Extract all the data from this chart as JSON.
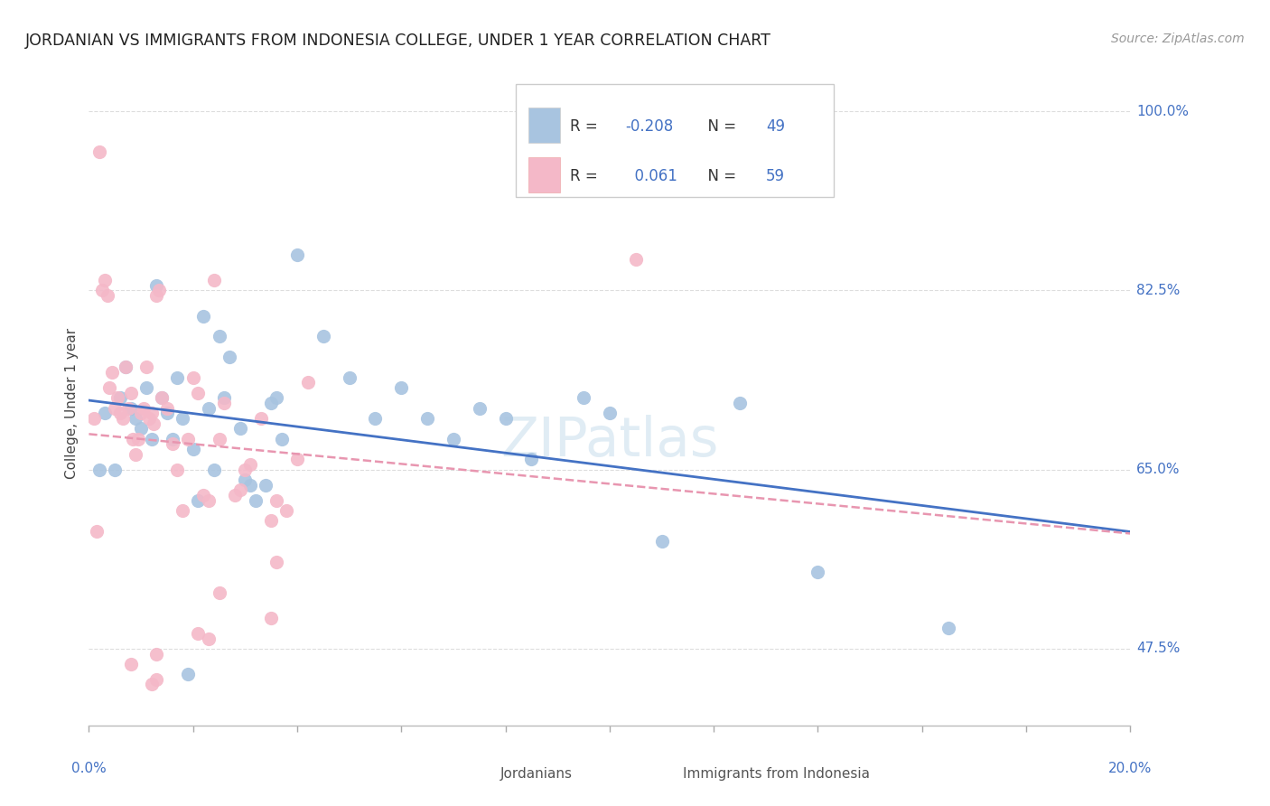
{
  "title": "JORDANIAN VS IMMIGRANTS FROM INDONESIA COLLEGE, UNDER 1 YEAR CORRELATION CHART",
  "source": "Source: ZipAtlas.com",
  "ylabel": "College, Under 1 year",
  "right_yticks": [
    100.0,
    82.5,
    65.0,
    47.5
  ],
  "xmin": 0.0,
  "xmax": 20.0,
  "ymin": 40.0,
  "ymax": 103.0,
  "blue_R": -0.208,
  "blue_N": 49,
  "pink_R": 0.061,
  "pink_N": 59,
  "legend_label_blue": "Jordanians",
  "legend_label_pink": "Immigrants from Indonesia",
  "blue_color": "#a8c4e0",
  "pink_color": "#f4b8c8",
  "blue_line_color": "#4472c4",
  "pink_line_color": "#e896b0",
  "blue_scatter": [
    [
      0.3,
      70.5
    ],
    [
      0.5,
      65.0
    ],
    [
      0.6,
      72.0
    ],
    [
      0.7,
      75.0
    ],
    [
      0.8,
      71.0
    ],
    [
      0.9,
      70.0
    ],
    [
      1.0,
      69.0
    ],
    [
      1.1,
      73.0
    ],
    [
      1.2,
      68.0
    ],
    [
      1.3,
      83.0
    ],
    [
      1.4,
      72.0
    ],
    [
      1.5,
      70.5
    ],
    [
      1.6,
      68.0
    ],
    [
      1.7,
      74.0
    ],
    [
      1.8,
      70.0
    ],
    [
      2.0,
      67.0
    ],
    [
      2.1,
      62.0
    ],
    [
      2.2,
      80.0
    ],
    [
      2.3,
      71.0
    ],
    [
      2.4,
      65.0
    ],
    [
      2.5,
      78.0
    ],
    [
      2.6,
      72.0
    ],
    [
      2.7,
      76.0
    ],
    [
      2.9,
      69.0
    ],
    [
      3.0,
      64.0
    ],
    [
      3.1,
      63.5
    ],
    [
      3.2,
      62.0
    ],
    [
      3.4,
      63.5
    ],
    [
      3.5,
      71.5
    ],
    [
      3.6,
      72.0
    ],
    [
      3.7,
      68.0
    ],
    [
      4.0,
      86.0
    ],
    [
      4.5,
      78.0
    ],
    [
      5.0,
      74.0
    ],
    [
      5.5,
      70.0
    ],
    [
      6.0,
      73.0
    ],
    [
      6.5,
      70.0
    ],
    [
      7.0,
      68.0
    ],
    [
      7.5,
      71.0
    ],
    [
      8.0,
      70.0
    ],
    [
      8.5,
      66.0
    ],
    [
      9.5,
      72.0
    ],
    [
      10.0,
      70.5
    ],
    [
      11.0,
      58.0
    ],
    [
      12.5,
      71.5
    ],
    [
      14.0,
      55.0
    ],
    [
      16.5,
      49.5
    ],
    [
      0.2,
      65.0
    ],
    [
      1.9,
      45.0
    ]
  ],
  "pink_scatter": [
    [
      0.1,
      70.0
    ],
    [
      0.2,
      96.0
    ],
    [
      0.25,
      82.5
    ],
    [
      0.3,
      83.5
    ],
    [
      0.35,
      82.0
    ],
    [
      0.4,
      73.0
    ],
    [
      0.45,
      74.5
    ],
    [
      0.5,
      71.0
    ],
    [
      0.55,
      72.0
    ],
    [
      0.6,
      70.5
    ],
    [
      0.65,
      70.0
    ],
    [
      0.7,
      75.0
    ],
    [
      0.75,
      71.0
    ],
    [
      0.8,
      72.5
    ],
    [
      0.85,
      68.0
    ],
    [
      0.9,
      66.5
    ],
    [
      0.95,
      68.0
    ],
    [
      1.0,
      70.5
    ],
    [
      1.05,
      71.0
    ],
    [
      1.1,
      75.0
    ],
    [
      1.15,
      70.0
    ],
    [
      1.2,
      70.5
    ],
    [
      1.25,
      69.5
    ],
    [
      1.3,
      82.0
    ],
    [
      1.35,
      82.5
    ],
    [
      1.4,
      72.0
    ],
    [
      1.5,
      71.0
    ],
    [
      1.6,
      67.5
    ],
    [
      1.7,
      65.0
    ],
    [
      1.8,
      61.0
    ],
    [
      1.9,
      68.0
    ],
    [
      2.0,
      74.0
    ],
    [
      2.1,
      72.5
    ],
    [
      2.2,
      62.5
    ],
    [
      2.3,
      62.0
    ],
    [
      2.4,
      83.5
    ],
    [
      2.5,
      68.0
    ],
    [
      2.6,
      71.5
    ],
    [
      2.8,
      62.5
    ],
    [
      2.9,
      63.0
    ],
    [
      3.0,
      65.0
    ],
    [
      3.1,
      65.5
    ],
    [
      3.3,
      70.0
    ],
    [
      3.5,
      60.0
    ],
    [
      3.6,
      62.0
    ],
    [
      3.8,
      61.0
    ],
    [
      4.0,
      66.0
    ],
    [
      4.2,
      73.5
    ],
    [
      1.3,
      47.0
    ],
    [
      2.1,
      49.0
    ],
    [
      2.3,
      48.5
    ],
    [
      2.5,
      53.0
    ],
    [
      1.2,
      44.0
    ],
    [
      1.3,
      44.5
    ],
    [
      0.8,
      46.0
    ],
    [
      3.5,
      50.5
    ],
    [
      3.6,
      56.0
    ],
    [
      10.5,
      85.5
    ],
    [
      0.15,
      59.0
    ]
  ],
  "watermark": "ZIPatlas",
  "background_color": "#ffffff",
  "grid_color": "#dddddd"
}
